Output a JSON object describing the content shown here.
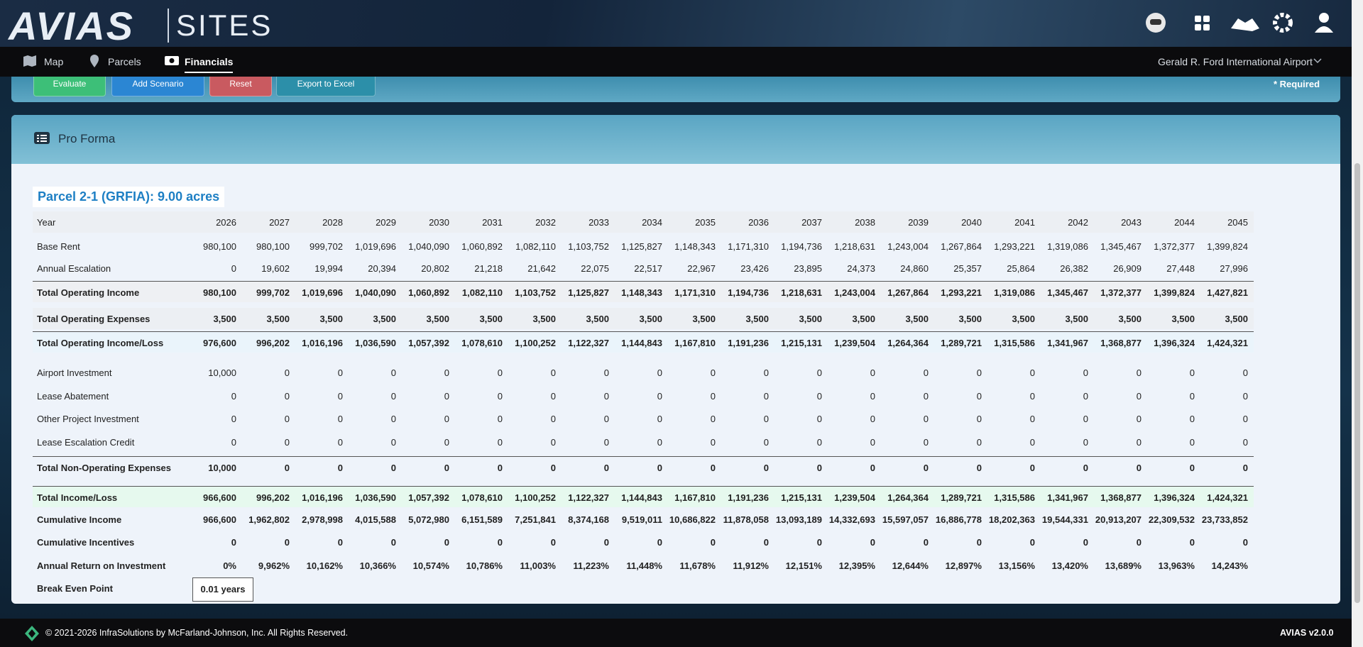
{
  "header": {
    "logo": "AVIAS",
    "product": "SITES"
  },
  "nav": {
    "items": [
      "Map",
      "Parcels",
      "Financials"
    ],
    "airport": "Gerald R. Ford International Airport"
  },
  "toolbar": {
    "buttons": [
      "Evaluate",
      "Add Scenario",
      "Reset",
      "Export to Excel"
    ],
    "required": "* Required"
  },
  "card": {
    "title": "Pro Forma",
    "parcel": "Parcel 2-1 (GRFIA): 9.00 acres"
  },
  "table": {
    "header": "Year",
    "years": [
      2026,
      2027,
      2028,
      2029,
      2030,
      2031,
      2032,
      2033,
      2034,
      2035,
      2036,
      2037,
      2038,
      2039,
      2040,
      2041,
      2042,
      2043,
      2044,
      2045
    ],
    "rows": [
      {
        "label": "Base Rent",
        "values": [
          "980,100",
          "980,100",
          "999,702",
          "1,019,696",
          "1,040,090",
          "1,060,892",
          "1,082,110",
          "1,103,752",
          "1,125,827",
          "1,148,343",
          "1,171,310",
          "1,194,736",
          "1,218,631",
          "1,243,004",
          "1,267,864",
          "1,293,221",
          "1,319,086",
          "1,345,467",
          "1,372,377",
          "1,399,824"
        ]
      },
      {
        "label": "Annual Escalation",
        "values": [
          "0",
          "19,602",
          "19,994",
          "20,394",
          "20,802",
          "21,218",
          "21,642",
          "22,075",
          "22,517",
          "22,967",
          "23,426",
          "23,895",
          "24,373",
          "24,860",
          "25,357",
          "25,864",
          "26,382",
          "26,909",
          "27,448",
          "27,996"
        ]
      },
      {
        "label": "Total Operating Income",
        "values": [
          "980,100",
          "999,702",
          "1,019,696",
          "1,040,090",
          "1,060,892",
          "1,082,110",
          "1,103,752",
          "1,125,827",
          "1,148,343",
          "1,171,310",
          "1,194,736",
          "1,218,631",
          "1,243,004",
          "1,267,864",
          "1,293,221",
          "1,319,086",
          "1,345,467",
          "1,372,377",
          "1,399,824",
          "1,427,821"
        ]
      },
      {
        "label": "Total Operating Expenses",
        "values": [
          "3,500",
          "3,500",
          "3,500",
          "3,500",
          "3,500",
          "3,500",
          "3,500",
          "3,500",
          "3,500",
          "3,500",
          "3,500",
          "3,500",
          "3,500",
          "3,500",
          "3,500",
          "3,500",
          "3,500",
          "3,500",
          "3,500",
          "3,500"
        ]
      },
      {
        "label": "Total Operating Income/Loss",
        "values": [
          "976,600",
          "996,202",
          "1,016,196",
          "1,036,590",
          "1,057,392",
          "1,078,610",
          "1,100,252",
          "1,122,327",
          "1,144,843",
          "1,167,810",
          "1,191,236",
          "1,215,131",
          "1,239,504",
          "1,264,364",
          "1,289,721",
          "1,315,586",
          "1,341,967",
          "1,368,877",
          "1,396,324",
          "1,424,321"
        ]
      },
      {
        "label": "Airport Investment",
        "values": [
          "10,000",
          "0",
          "0",
          "0",
          "0",
          "0",
          "0",
          "0",
          "0",
          "0",
          "0",
          "0",
          "0",
          "0",
          "0",
          "0",
          "0",
          "0",
          "0",
          "0"
        ]
      },
      {
        "label": "Lease Abatement",
        "values": [
          "0",
          "0",
          "0",
          "0",
          "0",
          "0",
          "0",
          "0",
          "0",
          "0",
          "0",
          "0",
          "0",
          "0",
          "0",
          "0",
          "0",
          "0",
          "0",
          "0"
        ]
      },
      {
        "label": "Other Project Investment",
        "values": [
          "0",
          "0",
          "0",
          "0",
          "0",
          "0",
          "0",
          "0",
          "0",
          "0",
          "0",
          "0",
          "0",
          "0",
          "0",
          "0",
          "0",
          "0",
          "0",
          "0"
        ]
      },
      {
        "label": "Lease Escalation Credit",
        "values": [
          "0",
          "0",
          "0",
          "0",
          "0",
          "0",
          "0",
          "0",
          "0",
          "0",
          "0",
          "0",
          "0",
          "0",
          "0",
          "0",
          "0",
          "0",
          "0",
          "0"
        ]
      },
      {
        "label": "Total Non-Operating Expenses",
        "values": [
          "10,000",
          "0",
          "0",
          "0",
          "0",
          "0",
          "0",
          "0",
          "0",
          "0",
          "0",
          "0",
          "0",
          "0",
          "0",
          "0",
          "0",
          "0",
          "0",
          "0"
        ]
      },
      {
        "label": "Total Income/Loss",
        "values": [
          "966,600",
          "996,202",
          "1,016,196",
          "1,036,590",
          "1,057,392",
          "1,078,610",
          "1,100,252",
          "1,122,327",
          "1,144,843",
          "1,167,810",
          "1,191,236",
          "1,215,131",
          "1,239,504",
          "1,264,364",
          "1,289,721",
          "1,315,586",
          "1,341,967",
          "1,368,877",
          "1,396,324",
          "1,424,321"
        ]
      },
      {
        "label": "Cumulative Income",
        "values": [
          "966,600",
          "1,962,802",
          "2,978,998",
          "4,015,588",
          "5,072,980",
          "6,151,589",
          "7,251,841",
          "8,374,168",
          "9,519,011",
          "10,686,822",
          "11,878,058",
          "13,093,189",
          "14,332,693",
          "15,597,057",
          "16,886,778",
          "18,202,363",
          "19,544,331",
          "20,913,207",
          "22,309,532",
          "23,733,852"
        ]
      },
      {
        "label": "Cumulative Incentives",
        "values": [
          "0",
          "0",
          "0",
          "0",
          "0",
          "0",
          "0",
          "0",
          "0",
          "0",
          "0",
          "0",
          "0",
          "0",
          "0",
          "0",
          "0",
          "0",
          "0",
          "0"
        ]
      },
      {
        "label": "Annual Return on Investment",
        "values": [
          "0%",
          "9,962%",
          "10,162%",
          "10,366%",
          "10,574%",
          "10,786%",
          "11,003%",
          "11,223%",
          "11,448%",
          "11,678%",
          "11,912%",
          "12,151%",
          "12,395%",
          "12,644%",
          "12,897%",
          "13,156%",
          "13,420%",
          "13,689%",
          "13,963%",
          "14,243%"
        ]
      }
    ]
  },
  "break_even": {
    "label": "Break Even Point",
    "value": "0.01 years"
  },
  "footer": {
    "copyright": "© 2021-2026 InfraSolutions by McFarland-Johnson, Inc. All Rights Reserved.",
    "version": "AVIAS v2.0.0"
  }
}
